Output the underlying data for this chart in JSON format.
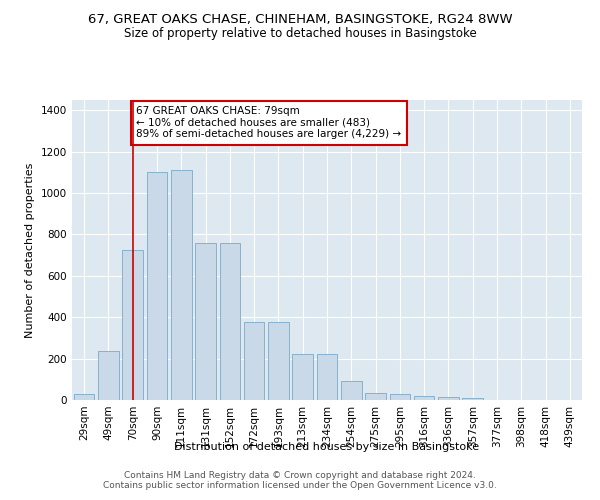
{
  "title": "67, GREAT OAKS CHASE, CHINEHAM, BASINGSTOKE, RG24 8WW",
  "subtitle": "Size of property relative to detached houses in Basingstoke",
  "xlabel": "Distribution of detached houses by size in Basingstoke",
  "ylabel": "Number of detached properties",
  "categories": [
    "29sqm",
    "49sqm",
    "70sqm",
    "90sqm",
    "111sqm",
    "131sqm",
    "152sqm",
    "172sqm",
    "193sqm",
    "213sqm",
    "234sqm",
    "254sqm",
    "275sqm",
    "295sqm",
    "316sqm",
    "336sqm",
    "357sqm",
    "377sqm",
    "398sqm",
    "418sqm",
    "439sqm"
  ],
  "values": [
    30,
    235,
    725,
    1100,
    1110,
    760,
    760,
    375,
    375,
    220,
    220,
    90,
    35,
    30,
    20,
    15,
    10,
    0,
    0,
    0,
    0
  ],
  "bar_color": "#c9d9e8",
  "bar_edge_color": "#7aaac8",
  "vline_x": 2.0,
  "vline_color": "#cc0000",
  "annotation_text": "67 GREAT OAKS CHASE: 79sqm\n← 10% of detached houses are smaller (483)\n89% of semi-detached houses are larger (4,229) →",
  "annotation_box_color": "#ffffff",
  "annotation_box_edge": "#cc0000",
  "ylim": [
    0,
    1450
  ],
  "yticks": [
    0,
    200,
    400,
    600,
    800,
    1000,
    1200,
    1400
  ],
  "footer": "Contains HM Land Registry data © Crown copyright and database right 2024.\nContains public sector information licensed under the Open Government Licence v3.0.",
  "bg_color": "#dde8f0",
  "title_fontsize": 9.5,
  "subtitle_fontsize": 8.5,
  "axis_label_fontsize": 8,
  "tick_fontsize": 7.5,
  "annotation_fontsize": 7.5,
  "footer_fontsize": 6.5
}
